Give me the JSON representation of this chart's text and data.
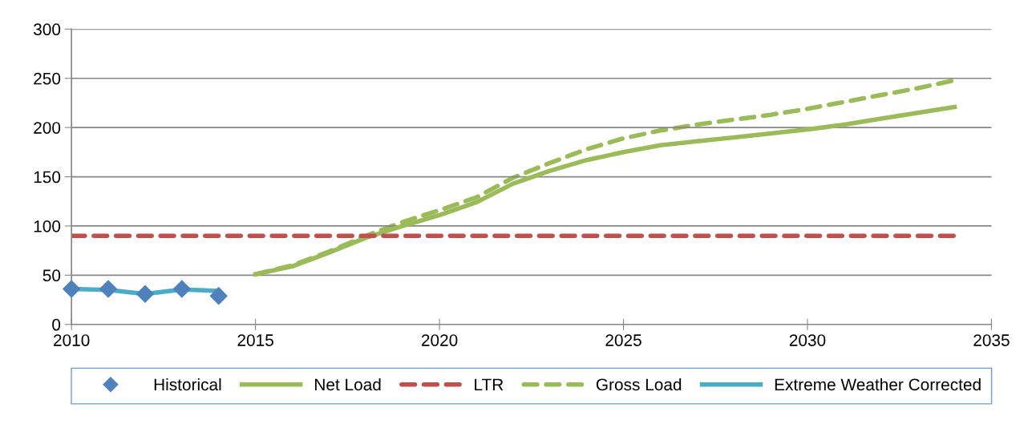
{
  "chart_data": {
    "type": "line",
    "xlim": [
      2010,
      2035
    ],
    "xticks": [
      2010,
      2015,
      2020,
      2025,
      2030,
      2035
    ],
    "ylim": [
      0,
      300
    ],
    "yticks": [
      0,
      50,
      100,
      150,
      200,
      250,
      300
    ],
    "grid": "y",
    "legend": "bottom",
    "series": [
      {
        "name": "Historical",
        "type": "scatter",
        "marker": "diamond",
        "color": "#4f81bd",
        "x": [
          2010,
          2011,
          2012,
          2013,
          2014
        ],
        "values": [
          36,
          36,
          31,
          36,
          29
        ]
      },
      {
        "name": "Net Load",
        "color": "#9bbb59",
        "line_style": "solid",
        "x": [
          2015,
          2016,
          2017,
          2018,
          2019,
          2020,
          2021,
          2022,
          2023,
          2024,
          2025,
          2026,
          2027,
          2028,
          2029,
          2030,
          2031,
          2032,
          2033,
          2034
        ],
        "values": [
          51,
          59,
          73,
          88,
          100,
          111,
          124,
          143,
          156,
          167,
          175,
          182,
          186,
          190,
          194,
          198,
          203,
          209,
          215,
          221
        ]
      },
      {
        "name": "LTR",
        "color": "#c0504d",
        "line_style": "dashed",
        "x": [
          2010,
          2034
        ],
        "values": [
          90,
          90
        ]
      },
      {
        "name": "Gross Load",
        "color": "#9bbb59",
        "line_style": "dashed",
        "x": [
          2015,
          2016,
          2017,
          2018,
          2019,
          2020,
          2021,
          2022,
          2023,
          2024,
          2025,
          2026,
          2027,
          2028,
          2029,
          2030,
          2031,
          2032,
          2033,
          2034
        ],
        "values": [
          51,
          60,
          74,
          90,
          104,
          116,
          129,
          149,
          164,
          178,
          189,
          197,
          203,
          208,
          213,
          219,
          226,
          233,
          240,
          248
        ]
      },
      {
        "name": "Extreme Weather Corrected",
        "color": "#4bacc6",
        "line_style": "solid",
        "x": [
          2010,
          2011,
          2012,
          2013,
          2014
        ],
        "values": [
          36,
          35,
          31,
          35.5,
          34
        ]
      }
    ]
  }
}
